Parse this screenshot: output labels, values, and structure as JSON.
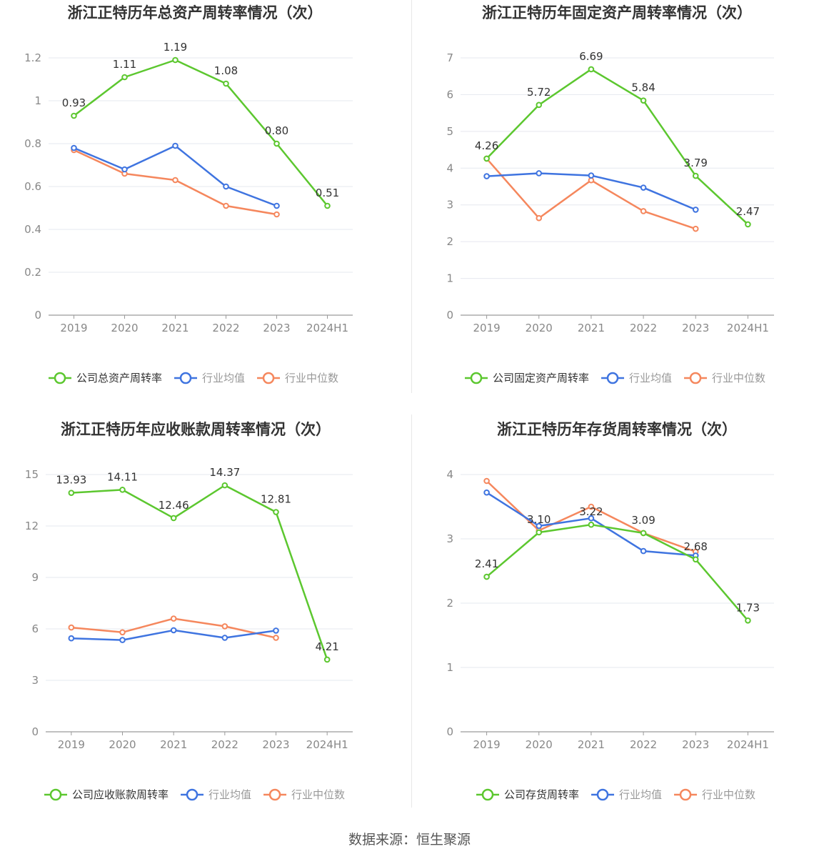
{
  "source": "数据来源：恒生聚源",
  "colors": {
    "company": "#5cc72f",
    "mean": "#3f74e0",
    "median": "#f5875d"
  },
  "chart_data": [
    {
      "type": "line",
      "title": "浙江正特历年总资产周转率情况（次）",
      "categories": [
        "2019",
        "2020",
        "2021",
        "2022",
        "2023",
        "2024H1"
      ],
      "ylim": [
        0,
        1.2
      ],
      "yticks": [
        "0",
        "0.2",
        "0.4",
        "0.6",
        "0.8",
        "1",
        "1.2"
      ],
      "series": [
        {
          "name": "公司总资产周转率",
          "values": [
            0.93,
            1.11,
            1.19,
            1.08,
            0.8,
            0.51
          ],
          "labels": [
            "0.93",
            "1.11",
            "1.19",
            "1.08",
            "0.80",
            "0.51"
          ]
        },
        {
          "name": "行业均值",
          "values": [
            0.78,
            0.68,
            0.79,
            0.6,
            0.51,
            null
          ]
        },
        {
          "name": "行业中位数",
          "values": [
            0.77,
            0.66,
            0.63,
            0.51,
            0.47,
            null
          ]
        }
      ]
    },
    {
      "type": "line",
      "title": "浙江正特历年固定资产周转率情况（次）",
      "categories": [
        "2019",
        "2020",
        "2021",
        "2022",
        "2023",
        "2024H1"
      ],
      "ylim": [
        0,
        7
      ],
      "yticks": [
        "0",
        "1",
        "2",
        "3",
        "4",
        "5",
        "6",
        "7"
      ],
      "series": [
        {
          "name": "公司固定资产周转率",
          "values": [
            4.26,
            5.72,
            6.69,
            5.84,
            3.79,
            2.47
          ],
          "labels": [
            "4.26",
            "5.72",
            "6.69",
            "5.84",
            "3.79",
            "2.47"
          ]
        },
        {
          "name": "行业均值",
          "values": [
            3.78,
            3.86,
            3.8,
            3.47,
            2.87,
            null
          ]
        },
        {
          "name": "行业中位数",
          "values": [
            4.26,
            2.64,
            3.67,
            2.83,
            2.35,
            null
          ]
        }
      ]
    },
    {
      "type": "line",
      "title": "浙江正特历年应收账款周转率情况（次）",
      "categories": [
        "2019",
        "2020",
        "2021",
        "2022",
        "2023",
        "2024H1"
      ],
      "ylim": [
        0,
        15
      ],
      "yticks": [
        "0",
        "3",
        "6",
        "9",
        "12",
        "15"
      ],
      "series": [
        {
          "name": "公司应收账款周转率",
          "values": [
            13.93,
            14.11,
            12.46,
            14.37,
            12.81,
            4.21
          ],
          "labels": [
            "13.93",
            "14.11",
            "12.46",
            "14.37",
            "12.81",
            "4.21"
          ]
        },
        {
          "name": "行业均值",
          "values": [
            5.45,
            5.35,
            5.92,
            5.48,
            5.9,
            null
          ]
        },
        {
          "name": "行业中位数",
          "values": [
            6.08,
            5.8,
            6.6,
            6.15,
            5.48,
            null
          ]
        }
      ]
    },
    {
      "type": "line",
      "title": "浙江正特历年存货周转率情况（次）",
      "categories": [
        "2019",
        "2020",
        "2021",
        "2022",
        "2023",
        "2024H1"
      ],
      "ylim": [
        0,
        4
      ],
      "yticks": [
        "0",
        "1",
        "2",
        "3",
        "4"
      ],
      "series": [
        {
          "name": "公司存货周转率",
          "values": [
            2.41,
            3.1,
            3.22,
            3.09,
            2.68,
            1.73
          ],
          "labels": [
            "2.41",
            "3.10",
            "3.22",
            "3.09",
            "2.68",
            "1.73"
          ]
        },
        {
          "name": "行业均值",
          "values": [
            3.72,
            3.2,
            3.32,
            2.81,
            2.74,
            null
          ]
        },
        {
          "name": "行业中位数",
          "values": [
            3.9,
            3.13,
            3.5,
            3.09,
            2.8,
            null
          ]
        }
      ]
    }
  ]
}
